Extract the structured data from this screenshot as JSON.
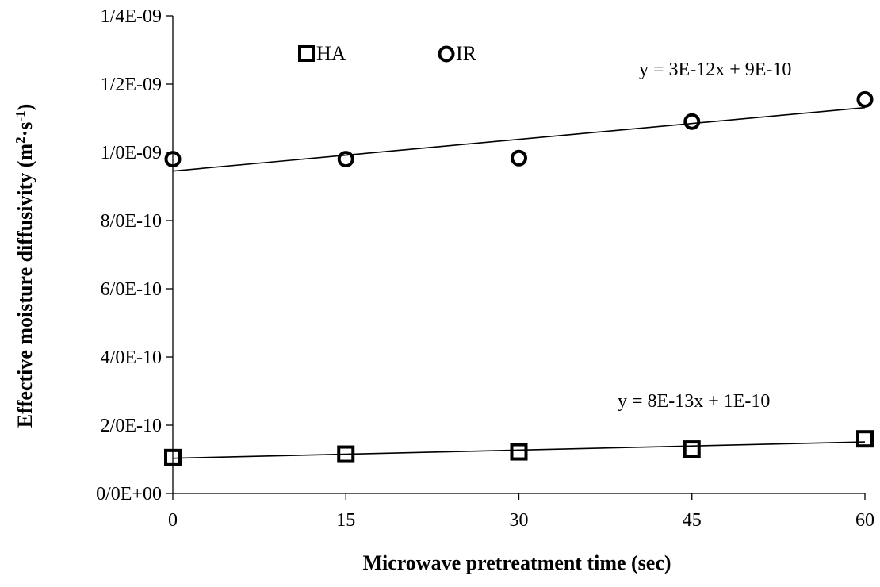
{
  "chart_data": {
    "type": "scatter",
    "xlabel": "Microwave pretreatment time (sec)",
    "ylabel_main": "Effective moisture diffusivity (m",
    "ylabel_sup1": "2",
    "ylabel_mid": "·s",
    "ylabel_sup2": "-1",
    "ylabel_end": ")",
    "x_ticks": [
      0,
      15,
      30,
      45,
      60
    ],
    "y_ticks": [
      0,
      2e-10,
      4e-10,
      6e-10,
      8e-10,
      1e-09,
      1.2e-09,
      1.4e-09
    ],
    "y_tick_labels": [
      "0/0E+00",
      "2/0E-10",
      "4/0E-10",
      "6/0E-10",
      "8/0E-10",
      "1/0E-09",
      "1/2E-09",
      "1/4E-09"
    ],
    "xlim": [
      0,
      60
    ],
    "ylim": [
      0,
      1.4e-09
    ],
    "grid": false,
    "legend_position": "top-left",
    "series": [
      {
        "name": "HA",
        "marker": "square",
        "x": [
          0,
          15,
          30,
          45,
          60
        ],
        "y": [
          1.05e-10,
          1.15e-10,
          1.22e-10,
          1.3e-10,
          1.6e-10
        ],
        "trendline": {
          "slope": 8e-13,
          "intercept": 1.03e-10,
          "equation": "y = 8E-13x + 1E-10"
        }
      },
      {
        "name": "IR",
        "marker": "circle",
        "x": [
          0,
          15,
          30,
          45,
          60
        ],
        "y": [
          9.8e-10,
          9.8e-10,
          9.83e-10,
          1.09e-09,
          1.155e-09
        ],
        "trendline": {
          "slope": 3.1e-12,
          "intercept": 9.45e-10,
          "equation": "y = 3E-12x + 9E-10"
        }
      }
    ]
  }
}
